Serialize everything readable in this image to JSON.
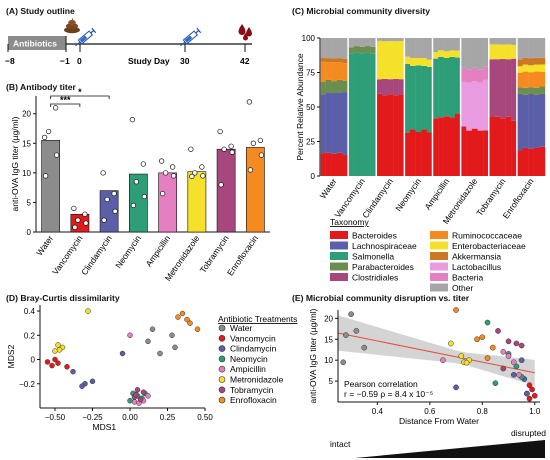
{
  "panels": {
    "a": "(A) Study outline",
    "b": "(B) Antibody titer",
    "c": "(C) Microbial community diversity",
    "d": "(D) Bray-Curtis dissimilarity",
    "e": "(E) Microbial community disruption vs. titer"
  },
  "outline": {
    "antibiotics_label": "Antibiotics",
    "axis_label": "Study Day",
    "days": [
      "−8",
      "−1",
      "0",
      "30",
      "42"
    ]
  },
  "colors": {
    "Water": "#8c8c8c",
    "Vancomycin": "#e31a1c",
    "Clindamycin": "#5b5fa8",
    "Neomycin": "#2e9e78",
    "Ampicillin": "#e57fc2",
    "Metronidazole": "#f5e12a",
    "Tobramycin": "#a8477e",
    "Enrofloxacin": "#f58b20"
  },
  "chart_data": [
    {
      "type": "bar",
      "title": "Antibody titer",
      "ylabel": "anti-OVA IgG titer (µg/ml)",
      "ylim": [
        0,
        23
      ],
      "yticks": [
        0,
        5,
        10,
        15,
        20
      ],
      "categories": [
        "Water",
        "Vancomycin",
        "Clindamycin",
        "Neomycin",
        "Ampicillin",
        "Metronidazole",
        "Tobramycin",
        "Enrofloxacin"
      ],
      "values": [
        15.5,
        3.0,
        7.0,
        9.8,
        10.0,
        10.2,
        14.0,
        14.3
      ],
      "points": [
        [
          16,
          21,
          17,
          13,
          9.5
        ],
        [
          4,
          3,
          2,
          1.5,
          0.8
        ],
        [
          10,
          6.5,
          5.5,
          3.5,
          2
        ],
        [
          19,
          11.5,
          8.5,
          6,
          4.5
        ],
        [
          12,
          11,
          10,
          9.5,
          6.5
        ],
        [
          14,
          11,
          10,
          9.5,
          9.4
        ],
        [
          17,
          14.5,
          14,
          13.5,
          8
        ],
        [
          22,
          15.5,
          15,
          13,
          10.5
        ]
      ],
      "significance": [
        {
          "from": "Water",
          "to": "Vancomycin",
          "label": "***"
        },
        {
          "from": "Water",
          "to": "Clindamycin",
          "label": "*"
        }
      ]
    },
    {
      "type": "bar",
      "stacked": true,
      "title": "Microbial community diversity",
      "ylabel": "Percent Relative Abundance",
      "ylim": [
        0,
        100
      ],
      "yticks": [
        0,
        25,
        50,
        75,
        100
      ],
      "groups": [
        "Water",
        "Vancomycin",
        "Clindamycin",
        "Neomycin",
        "Ampicillin",
        "Metronidazole",
        "Tobramycin",
        "Enrofloxacin"
      ],
      "legend_title": "Taxonomy",
      "taxa": [
        {
          "name": "Bacteroides",
          "color": "#e31a1c"
        },
        {
          "name": "Lachnospiraceae",
          "color": "#5b5fa8"
        },
        {
          "name": "Salmonella",
          "color": "#2e9e78"
        },
        {
          "name": "Parabacteroides",
          "color": "#6b8e4e"
        },
        {
          "name": "Clostridiales",
          "color": "#a8477e"
        },
        {
          "name": "Ruminococcaceae",
          "color": "#f58b20"
        },
        {
          "name": "Enterobacteriaceae",
          "color": "#f5e12a"
        },
        {
          "name": "Akkermansia",
          "color": "#cc7722"
        },
        {
          "name": "Lactobacillus",
          "color": "#e89be0"
        },
        {
          "name": "Bacteria",
          "color": "#e57fc2"
        },
        {
          "name": "Other",
          "color": "#a6a6a6"
        }
      ],
      "group_profiles": [
        [
          15,
          45,
          0,
          8,
          0,
          14,
          0,
          3,
          0,
          0,
          15
        ],
        [
          0,
          0,
          88,
          5,
          0,
          0,
          0,
          0,
          0,
          0,
          7
        ],
        [
          60,
          0,
          0,
          0,
          10,
          0,
          28,
          0,
          0,
          0,
          2
        ],
        [
          30,
          0,
          50,
          0,
          0,
          0,
          5,
          0,
          0,
          0,
          15
        ],
        [
          45,
          0,
          40,
          0,
          0,
          0,
          5,
          0,
          0,
          0,
          10
        ],
        [
          35,
          0,
          0,
          0,
          0,
          0,
          0,
          0,
          35,
          10,
          20
        ],
        [
          40,
          0,
          0,
          0,
          45,
          0,
          10,
          0,
          0,
          0,
          5
        ],
        [
          20,
          40,
          0,
          5,
          0,
          10,
          5,
          5,
          0,
          0,
          15
        ]
      ]
    },
    {
      "type": "scatter",
      "title": "Bray-Curtis dissimilarity",
      "xlabel": "MDS1",
      "ylabel": "MDS2",
      "xlim": [
        -0.6,
        0.5
      ],
      "ylim": [
        -0.4,
        0.45
      ],
      "xticks": [
        -0.5,
        -0.25,
        0.0,
        0.25,
        0.5
      ],
      "yticks": [
        -0.2,
        0.0,
        0.2,
        0.4
      ],
      "legend_title": "Antibiotic Treatments",
      "points": [
        {
          "g": "Water",
          "x": 0.15,
          "y": 0.25
        },
        {
          "g": "Water",
          "x": 0.2,
          "y": 0.05
        },
        {
          "g": "Water",
          "x": 0.3,
          "y": 0.1
        },
        {
          "g": "Water",
          "x": 0.28,
          "y": 0.2
        },
        {
          "g": "Water",
          "x": 0.12,
          "y": 0.15
        },
        {
          "g": "Vancomycin",
          "x": -0.55,
          "y": -0.02
        },
        {
          "g": "Vancomycin",
          "x": -0.52,
          "y": -0.05
        },
        {
          "g": "Vancomycin",
          "x": -0.48,
          "y": -0.03
        },
        {
          "g": "Vancomycin",
          "x": -0.42,
          "y": -0.06
        },
        {
          "g": "Vancomycin",
          "x": -0.5,
          "y": 0.0
        },
        {
          "g": "Clindamycin",
          "x": -0.3,
          "y": -0.2
        },
        {
          "g": "Clindamycin",
          "x": -0.25,
          "y": -0.18
        },
        {
          "g": "Clindamycin",
          "x": -0.38,
          "y": -0.1
        },
        {
          "g": "Clindamycin",
          "x": -0.05,
          "y": 0.05
        },
        {
          "g": "Clindamycin",
          "x": -0.32,
          "y": -0.22
        },
        {
          "g": "Neomycin",
          "x": 0.02,
          "y": -0.28
        },
        {
          "g": "Neomycin",
          "x": 0.05,
          "y": -0.3
        },
        {
          "g": "Neomycin",
          "x": 0.08,
          "y": -0.32
        },
        {
          "g": "Neomycin",
          "x": 0.0,
          "y": -0.34
        },
        {
          "g": "Neomycin",
          "x": 0.1,
          "y": -0.28
        },
        {
          "g": "Ampicillin",
          "x": 0.03,
          "y": -0.35
        },
        {
          "g": "Ampicillin",
          "x": 0.06,
          "y": -0.36
        },
        {
          "g": "Ampicillin",
          "x": 0.0,
          "y": 0.2
        },
        {
          "g": "Ampicillin",
          "x": 0.09,
          "y": -0.34
        },
        {
          "g": "Ampicillin",
          "x": 0.12,
          "y": -0.3
        },
        {
          "g": "Metronidazole",
          "x": -0.28,
          "y": 0.4
        },
        {
          "g": "Metronidazole",
          "x": -0.5,
          "y": 0.07
        },
        {
          "g": "Metronidazole",
          "x": -0.45,
          "y": 0.1
        },
        {
          "g": "Metronidazole",
          "x": -0.48,
          "y": 0.12
        },
        {
          "g": "Metronidazole",
          "x": -0.47,
          "y": 0.08
        },
        {
          "g": "Tobramycin",
          "x": 0.05,
          "y": -0.25
        },
        {
          "g": "Tobramycin",
          "x": 0.07,
          "y": -0.33
        },
        {
          "g": "Tobramycin",
          "x": 0.03,
          "y": -0.31
        },
        {
          "g": "Tobramycin",
          "x": 0.09,
          "y": -0.27
        },
        {
          "g": "Tobramycin",
          "x": 0.04,
          "y": -0.29
        },
        {
          "g": "Enrofloxacin",
          "x": 0.32,
          "y": 0.35
        },
        {
          "g": "Enrofloxacin",
          "x": 0.4,
          "y": 0.3
        },
        {
          "g": "Enrofloxacin",
          "x": 0.35,
          "y": 0.38
        },
        {
          "g": "Enrofloxacin",
          "x": 0.45,
          "y": 0.25
        },
        {
          "g": "Enrofloxacin",
          "x": 0.38,
          "y": 0.33
        }
      ]
    },
    {
      "type": "scatter",
      "title": "Microbial community disruption vs. titer",
      "xlabel": "Distance From Water",
      "ylabel": "anti-OVA IgG titer (µg/ml)",
      "xlim": [
        0.25,
        1.02
      ],
      "ylim": [
        0,
        22
      ],
      "xticks": [
        0.4,
        0.6,
        0.8,
        1.0
      ],
      "yticks": [
        5,
        10,
        15,
        20
      ],
      "trend": {
        "x": [
          0.25,
          1.0
        ],
        "y": [
          16.5,
          7.0
        ]
      },
      "annotation": [
        "Pearson correlation",
        "r = −0.59   ρ = 8.4 x 10⁻⁵"
      ],
      "scale_labels": [
        "intact",
        "disrupted"
      ],
      "points": [
        {
          "g": "Water",
          "x": 0.28,
          "y": 16
        },
        {
          "g": "Water",
          "x": 0.3,
          "y": 21
        },
        {
          "g": "Water",
          "x": 0.32,
          "y": 17
        },
        {
          "g": "Water",
          "x": 0.35,
          "y": 13
        },
        {
          "g": "Water",
          "x": 0.27,
          "y": 9.5
        },
        {
          "g": "Vancomycin",
          "x": 0.98,
          "y": 4
        },
        {
          "g": "Vancomycin",
          "x": 0.99,
          "y": 3
        },
        {
          "g": "Vancomycin",
          "x": 0.97,
          "y": 2
        },
        {
          "g": "Vancomycin",
          "x": 1.0,
          "y": 1.5
        },
        {
          "g": "Vancomycin",
          "x": 0.98,
          "y": 0.8
        },
        {
          "g": "Clindamycin",
          "x": 0.95,
          "y": 10
        },
        {
          "g": "Clindamycin",
          "x": 0.92,
          "y": 6.5
        },
        {
          "g": "Clindamycin",
          "x": 0.96,
          "y": 5.5
        },
        {
          "g": "Clindamycin",
          "x": 0.7,
          "y": 3.5
        },
        {
          "g": "Clindamycin",
          "x": 0.97,
          "y": 2
        },
        {
          "g": "Neomycin",
          "x": 0.82,
          "y": 19
        },
        {
          "g": "Neomycin",
          "x": 0.9,
          "y": 11.5
        },
        {
          "g": "Neomycin",
          "x": 0.93,
          "y": 8.5
        },
        {
          "g": "Neomycin",
          "x": 0.95,
          "y": 6
        },
        {
          "g": "Neomycin",
          "x": 0.85,
          "y": 4.5
        },
        {
          "g": "Ampicillin",
          "x": 0.88,
          "y": 12
        },
        {
          "g": "Ampicillin",
          "x": 0.9,
          "y": 11
        },
        {
          "g": "Ampicillin",
          "x": 0.65,
          "y": 10
        },
        {
          "g": "Ampicillin",
          "x": 0.92,
          "y": 9.5
        },
        {
          "g": "Ampicillin",
          "x": 0.94,
          "y": 6.5
        },
        {
          "g": "Metronidazole",
          "x": 0.68,
          "y": 14
        },
        {
          "g": "Metronidazole",
          "x": 0.72,
          "y": 11
        },
        {
          "g": "Metronidazole",
          "x": 0.75,
          "y": 10
        },
        {
          "g": "Metronidazole",
          "x": 0.73,
          "y": 9.5
        },
        {
          "g": "Metronidazole",
          "x": 0.74,
          "y": 9.4
        },
        {
          "g": "Tobramycin",
          "x": 0.86,
          "y": 17
        },
        {
          "g": "Tobramycin",
          "x": 0.9,
          "y": 14.5
        },
        {
          "g": "Tobramycin",
          "x": 0.93,
          "y": 14
        },
        {
          "g": "Tobramycin",
          "x": 0.95,
          "y": 13.5
        },
        {
          "g": "Tobramycin",
          "x": 0.88,
          "y": 8
        },
        {
          "g": "Enrofloxacin",
          "x": 0.7,
          "y": 22
        },
        {
          "g": "Enrofloxacin",
          "x": 0.8,
          "y": 15.5
        },
        {
          "g": "Enrofloxacin",
          "x": 0.78,
          "y": 15
        },
        {
          "g": "Enrofloxacin",
          "x": 0.84,
          "y": 13
        },
        {
          "g": "Enrofloxacin",
          "x": 0.82,
          "y": 10.5
        }
      ]
    }
  ]
}
